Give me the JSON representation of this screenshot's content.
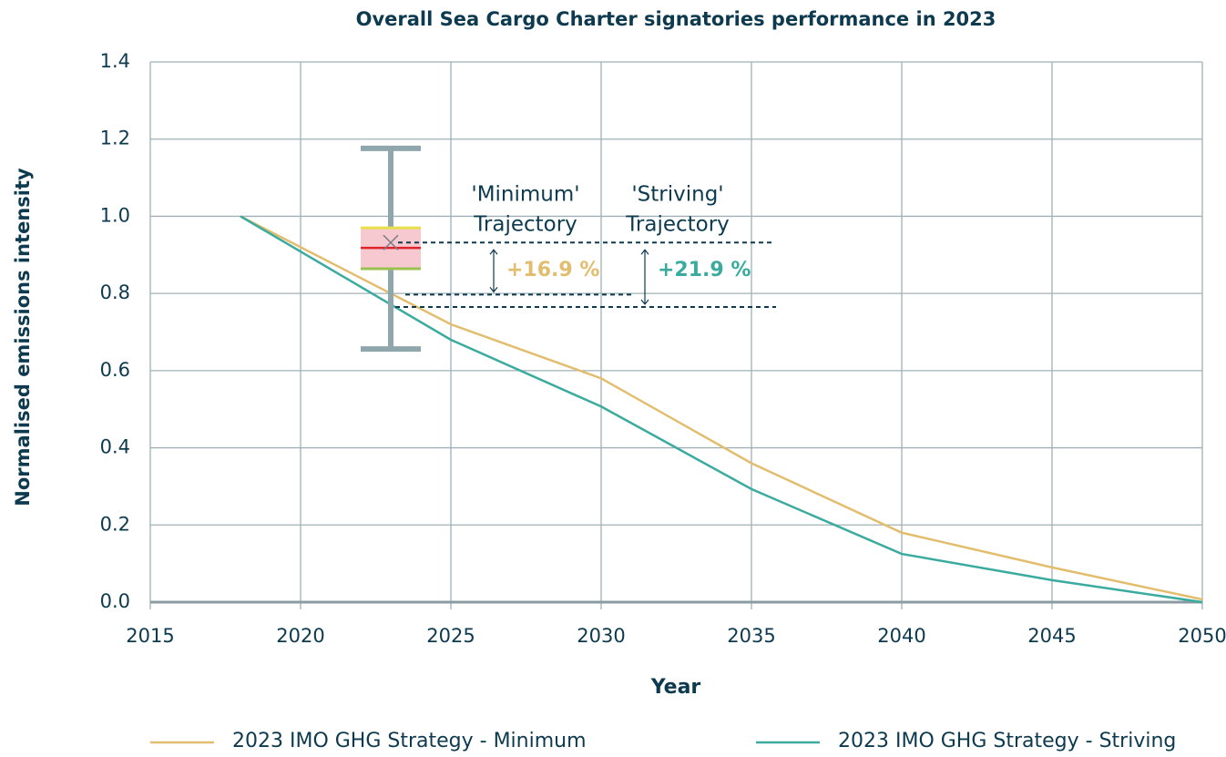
{
  "chart_data": {
    "type": "line",
    "title": "Overall Sea Cargo Charter signatories performance in 2023",
    "x_label": "Year",
    "y_label": "Normalised emissions intensity",
    "x": [
      2018,
      2025,
      2030,
      2035,
      2040,
      2045,
      2050
    ],
    "series": [
      {
        "name": "2023 IMO GHG Strategy - Minimum",
        "color": "#e2bd6e",
        "values": [
          1.0,
          0.72,
          0.58,
          0.36,
          0.18,
          0.09,
          0.007
        ]
      },
      {
        "name": "2023 IMO GHG Strategy - Striving",
        "color": "#3aab9e",
        "values": [
          1.0,
          0.68,
          0.507,
          0.293,
          0.125,
          0.057,
          0.0
        ]
      }
    ],
    "box": {
      "x": 2023,
      "whisker_low": 0.656,
      "q1": 0.864,
      "median": 0.918,
      "q3": 0.97,
      "whisker_high": 1.176,
      "mean": 0.932
    },
    "reference_levels": [
      0.797,
      0.765
    ],
    "annotations": [
      {
        "lines": [
          "'Minimum'",
          "Trajectory"
        ],
        "text": "+16.9 %",
        "color": "#e2bd6e"
      },
      {
        "lines": [
          "'Striving'",
          "Trajectory"
        ],
        "text": "+21.9 %",
        "color": "#3aab9e"
      }
    ],
    "xlim": [
      2015,
      2050
    ],
    "xticks": [
      2015,
      2020,
      2025,
      2030,
      2035,
      2040,
      2045,
      2050
    ],
    "ylim": [
      0,
      1.4
    ],
    "yticks": [
      {
        "value": 0,
        "label": "0.0"
      },
      {
        "value": 0.2,
        "label": "0.2"
      },
      {
        "value": 0.4,
        "label": "0.4"
      },
      {
        "value": 0.6,
        "label": "0.6"
      },
      {
        "value": 0.8,
        "label": "0.8"
      },
      {
        "value": 1.0,
        "label": "1.0"
      },
      {
        "value": 1.2,
        "label": "1.2"
      },
      {
        "value": 1.4,
        "label": "1.4"
      }
    ],
    "grid": true,
    "legend": "bottom"
  }
}
